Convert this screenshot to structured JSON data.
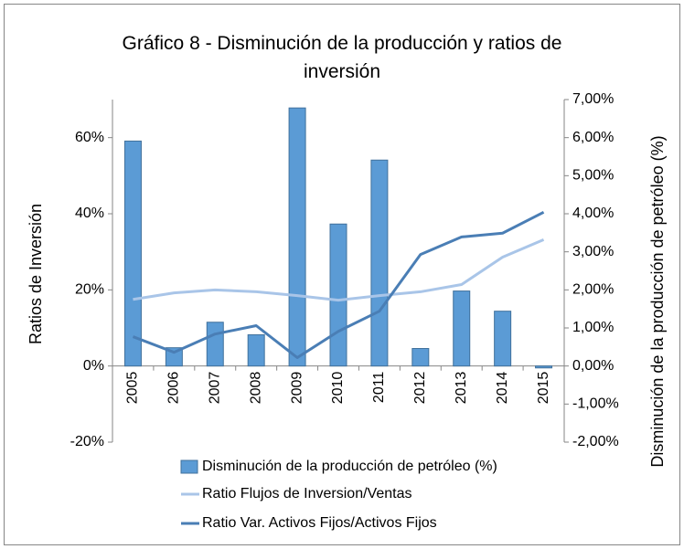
{
  "chart_data": {
    "type": "bar_line",
    "title": "Gráfico 8 - Disminución de la producción y ratios de inversión",
    "ylabel": "Ratios de Inversión",
    "y2label": "Disminución de la producción de petróleo (%)",
    "categories": [
      "2005",
      "2006",
      "2007",
      "2008",
      "2009",
      "2010",
      "2011",
      "2012",
      "2013",
      "2014",
      "2015"
    ],
    "ylim": [
      -20,
      70
    ],
    "yticks": [
      {
        "value": -20,
        "label": "-20%"
      },
      {
        "value": 0,
        "label": "0%"
      },
      {
        "value": 20,
        "label": "20%"
      },
      {
        "value": 40,
        "label": "40%"
      },
      {
        "value": 60,
        "label": "60%"
      }
    ],
    "y2lim": [
      -2,
      7
    ],
    "y2ticks": [
      {
        "value": -2,
        "label": "-2,00%"
      },
      {
        "value": -1,
        "label": "-1,00%"
      },
      {
        "value": 0,
        "label": "0,00%"
      },
      {
        "value": 1,
        "label": "1,00%"
      },
      {
        "value": 2,
        "label": "2,00%"
      },
      {
        "value": 3,
        "label": "3,00%"
      },
      {
        "value": 4,
        "label": "4,00%"
      },
      {
        "value": 5,
        "label": "5,00%"
      },
      {
        "value": 6,
        "label": "6,00%"
      },
      {
        "value": 7,
        "label": "7,00%"
      }
    ],
    "series": [
      {
        "name": "Disminución de la producción de petróleo (%)",
        "kind": "bar",
        "axis": "y2",
        "color": "#5b9bd5",
        "values": [
          5.91,
          0.48,
          1.15,
          0.82,
          6.78,
          3.73,
          5.41,
          0.46,
          1.97,
          1.44,
          -0.05
        ]
      },
      {
        "name": "Ratio Flujos de Inversion/Ventas",
        "kind": "line",
        "color": "#a9c5e8",
        "values": [
          17.5,
          19.2,
          20.0,
          19.5,
          18.5,
          17.3,
          18.5,
          19.5,
          21.4,
          28.6,
          33.2
        ]
      },
      {
        "name": "Ratio Var. Activos Fijos/Activos Fijos",
        "kind": "line",
        "color": "#4a7eb5",
        "values": [
          7.7,
          3.6,
          8.4,
          10.6,
          2.2,
          9.1,
          14.4,
          29.3,
          33.9,
          34.9,
          40.4
        ]
      }
    ]
  }
}
